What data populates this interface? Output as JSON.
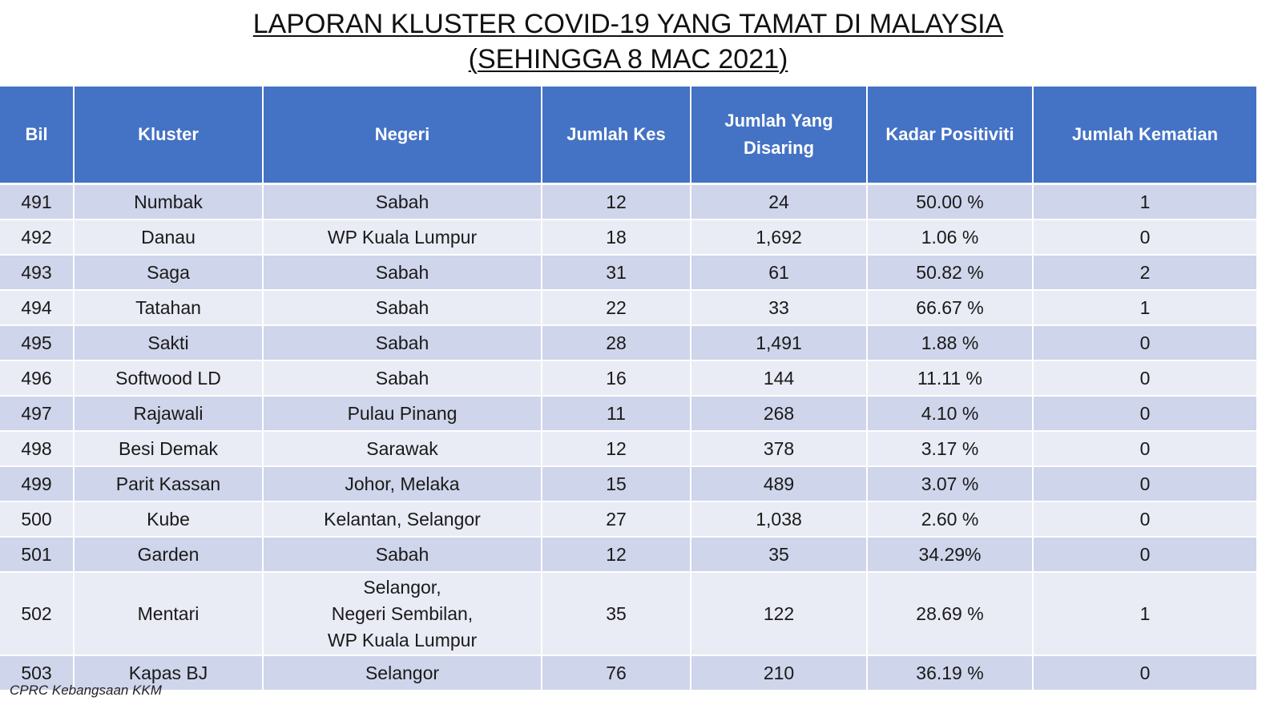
{
  "title": {
    "line1": "LAPORAN KLUSTER COVID-19 YANG TAMAT DI MALAYSIA",
    "line2": "(SEHINGGA 8 MAC 2021)"
  },
  "table": {
    "headers": {
      "bil": "Bil",
      "kluster": "Kluster",
      "negeri": "Negeri",
      "jumlah_kes": "Jumlah Kes",
      "jumlah_disaring_1": "Jumlah Yang",
      "jumlah_disaring_2": "Disaring",
      "kadar_positiviti": "Kadar Positiviti",
      "jumlah_kematian": "Jumlah Kematian"
    },
    "rows": [
      {
        "bil": "491",
        "kluster": "Numbak",
        "negeri": [
          "Sabah"
        ],
        "kes": "12",
        "disaring": "24",
        "positiviti": "50.00 %",
        "kematian": "1"
      },
      {
        "bil": "492",
        "kluster": "Danau",
        "negeri": [
          "WP Kuala Lumpur"
        ],
        "kes": "18",
        "disaring": "1,692",
        "positiviti": "1.06 %",
        "kematian": "0"
      },
      {
        "bil": "493",
        "kluster": "Saga",
        "negeri": [
          "Sabah"
        ],
        "kes": "31",
        "disaring": "61",
        "positiviti": "50.82 %",
        "kematian": "2"
      },
      {
        "bil": "494",
        "kluster": "Tatahan",
        "negeri": [
          "Sabah"
        ],
        "kes": "22",
        "disaring": "33",
        "positiviti": "66.67 %",
        "kematian": "1"
      },
      {
        "bil": "495",
        "kluster": "Sakti",
        "negeri": [
          "Sabah"
        ],
        "kes": "28",
        "disaring": "1,491",
        "positiviti": "1.88 %",
        "kematian": "0"
      },
      {
        "bil": "496",
        "kluster": "Softwood LD",
        "negeri": [
          "Sabah"
        ],
        "kes": "16",
        "disaring": "144",
        "positiviti": "11.11 %",
        "kematian": "0"
      },
      {
        "bil": "497",
        "kluster": "Rajawali",
        "negeri": [
          "Pulau Pinang"
        ],
        "kes": "11",
        "disaring": "268",
        "positiviti": "4.10 %",
        "kematian": "0"
      },
      {
        "bil": "498",
        "kluster": "Besi Demak",
        "negeri": [
          "Sarawak"
        ],
        "kes": "12",
        "disaring": "378",
        "positiviti": "3.17 %",
        "kematian": "0"
      },
      {
        "bil": "499",
        "kluster": "Parit Kassan",
        "negeri": [
          "Johor, Melaka"
        ],
        "kes": "15",
        "disaring": "489",
        "positiviti": "3.07 %",
        "kematian": "0"
      },
      {
        "bil": "500",
        "kluster": "Kube",
        "negeri": [
          "Kelantan, Selangor"
        ],
        "kes": "27",
        "disaring": "1,038",
        "positiviti": "2.60 %",
        "kematian": "0"
      },
      {
        "bil": "501",
        "kluster": "Garden",
        "negeri": [
          "Sabah"
        ],
        "kes": "12",
        "disaring": "35",
        "positiviti": "34.29%",
        "kematian": "0"
      },
      {
        "bil": "502",
        "kluster": "Mentari",
        "negeri": [
          "Selangor,",
          "Negeri Sembilan,",
          "WP Kuala Lumpur"
        ],
        "kes": "35",
        "disaring": "122",
        "positiviti": "28.69 %",
        "kematian": "1"
      },
      {
        "bil": "503",
        "kluster": "Kapas BJ",
        "negeri": [
          "Selangor"
        ],
        "kes": "76",
        "disaring": "210",
        "positiviti": "36.19 %",
        "kematian": "0"
      }
    ]
  },
  "source": "CPRC Kebangsaan KKM",
  "colors": {
    "header_bg": "#4472c4",
    "row_odd_bg": "#cfd5ea",
    "row_even_bg": "#e9ebf5"
  }
}
